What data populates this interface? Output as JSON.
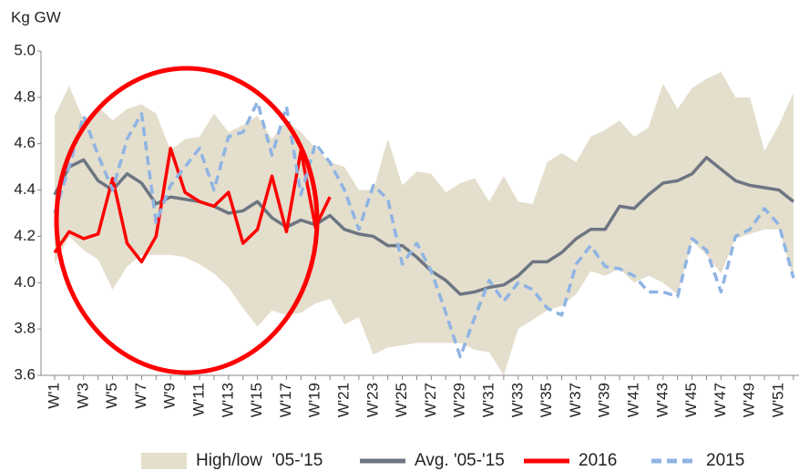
{
  "chart_data": {
    "type": "line",
    "y_label": "Kg GW",
    "categories": [
      "W'1",
      null,
      "W'3",
      null,
      "W'5",
      null,
      "W'7",
      null,
      "W'9",
      null,
      "W'11",
      null,
      "W'13",
      null,
      "W'15",
      null,
      "W'17",
      null,
      "W'19",
      null,
      "W'21",
      null,
      "W'23",
      null,
      "W'25",
      null,
      "W'27",
      null,
      "W'29",
      null,
      "W'31",
      null,
      "W'33",
      null,
      "W'35",
      null,
      "W'37",
      null,
      "W'39",
      null,
      "W'41",
      null,
      "W'43",
      null,
      "W'45",
      null,
      "W'47",
      null,
      "W'49",
      null,
      "W'51",
      null
    ],
    "ylim": [
      3.6,
      5.0
    ],
    "yticks": [
      3.6,
      3.8,
      {
        "value": 4.0,
        "label": "4.0"
      },
      4.2,
      4.4,
      4.6,
      4.8,
      {
        "value": 5.0,
        "label": "5.0"
      }
    ],
    "series": [
      {
        "name": "High/low  '05-'15",
        "color": "#e4decd",
        "style": "band",
        "high": [
          4.72,
          4.85,
          4.7,
          4.76,
          4.7,
          4.75,
          4.77,
          4.73,
          4.57,
          4.62,
          4.63,
          4.73,
          4.65,
          4.68,
          4.72,
          4.62,
          4.7,
          4.65,
          4.58,
          4.52,
          4.5,
          4.4,
          4.4,
          4.62,
          4.42,
          4.48,
          4.47,
          4.39,
          4.43,
          4.45,
          4.35,
          4.46,
          4.35,
          4.34,
          4.52,
          4.56,
          4.52,
          4.63,
          4.66,
          4.7,
          4.63,
          4.67,
          4.86,
          4.75,
          4.84,
          4.88,
          4.91,
          4.8,
          4.8,
          4.57,
          4.68,
          4.82
        ],
        "low": [
          4.08,
          4.2,
          4.14,
          4.1,
          3.97,
          4.07,
          4.12,
          4.12,
          4.12,
          4.11,
          4.08,
          4.04,
          3.98,
          3.89,
          3.81,
          3.88,
          3.86,
          3.87,
          3.91,
          3.93,
          3.82,
          3.85,
          3.69,
          3.72,
          3.73,
          3.74,
          3.74,
          3.74,
          3.74,
          3.71,
          3.7,
          3.6,
          3.8,
          3.84,
          3.88,
          3.9,
          3.95,
          4.05,
          4.03,
          4.06,
          4.0,
          4.03,
          4.0,
          3.95,
          4.18,
          4.12,
          4.04,
          4.19,
          4.21,
          4.23,
          4.23,
          4.02
        ]
      },
      {
        "name": "Avg. '05-'15",
        "color": "#6d7582",
        "style": "solid",
        "values": [
          4.38,
          4.5,
          4.53,
          4.44,
          4.4,
          4.47,
          4.43,
          4.34,
          4.37,
          4.36,
          4.35,
          4.33,
          4.3,
          4.31,
          4.35,
          4.28,
          4.24,
          4.27,
          4.25,
          4.29,
          4.23,
          4.21,
          4.2,
          4.16,
          4.16,
          4.11,
          4.05,
          4.01,
          3.95,
          3.96,
          3.98,
          3.99,
          4.03,
          4.09,
          4.09,
          4.13,
          4.19,
          4.23,
          4.23,
          4.33,
          4.32,
          4.38,
          4.43,
          4.44,
          4.47,
          4.54,
          4.49,
          4.44,
          4.42,
          4.41,
          4.4,
          4.35
        ]
      },
      {
        "name": "2016",
        "color": "#ff0000",
        "style": "solid",
        "values": [
          4.13,
          4.22,
          4.19,
          4.21,
          4.45,
          4.17,
          4.09,
          4.2,
          4.58,
          4.39,
          4.35,
          4.33,
          4.39,
          4.17,
          4.23,
          4.46,
          4.22,
          4.57,
          4.24,
          4.37,
          null,
          null,
          null,
          null,
          null,
          null,
          null,
          null,
          null,
          null,
          null,
          null,
          null,
          null,
          null,
          null,
          null,
          null,
          null,
          null,
          null,
          null,
          null,
          null,
          null,
          null,
          null,
          null,
          null,
          null,
          null,
          null
        ]
      },
      {
        "name": "2015",
        "color": "#8fb4e3",
        "style": "dashed",
        "values": [
          4.3,
          4.5,
          4.72,
          4.55,
          4.4,
          4.62,
          4.73,
          4.26,
          4.42,
          4.5,
          4.58,
          4.4,
          4.63,
          4.65,
          4.78,
          4.55,
          4.76,
          4.38,
          4.6,
          4.52,
          4.4,
          4.23,
          4.42,
          4.36,
          4.08,
          4.17,
          4.05,
          3.87,
          3.68,
          3.85,
          4.01,
          3.92,
          4.0,
          3.97,
          3.89,
          3.86,
          4.08,
          4.16,
          4.07,
          4.06,
          4.03,
          3.96,
          3.96,
          3.94,
          4.19,
          4.14,
          3.96,
          4.2,
          4.23,
          4.32,
          4.25,
          4.02
        ]
      }
    ]
  }
}
